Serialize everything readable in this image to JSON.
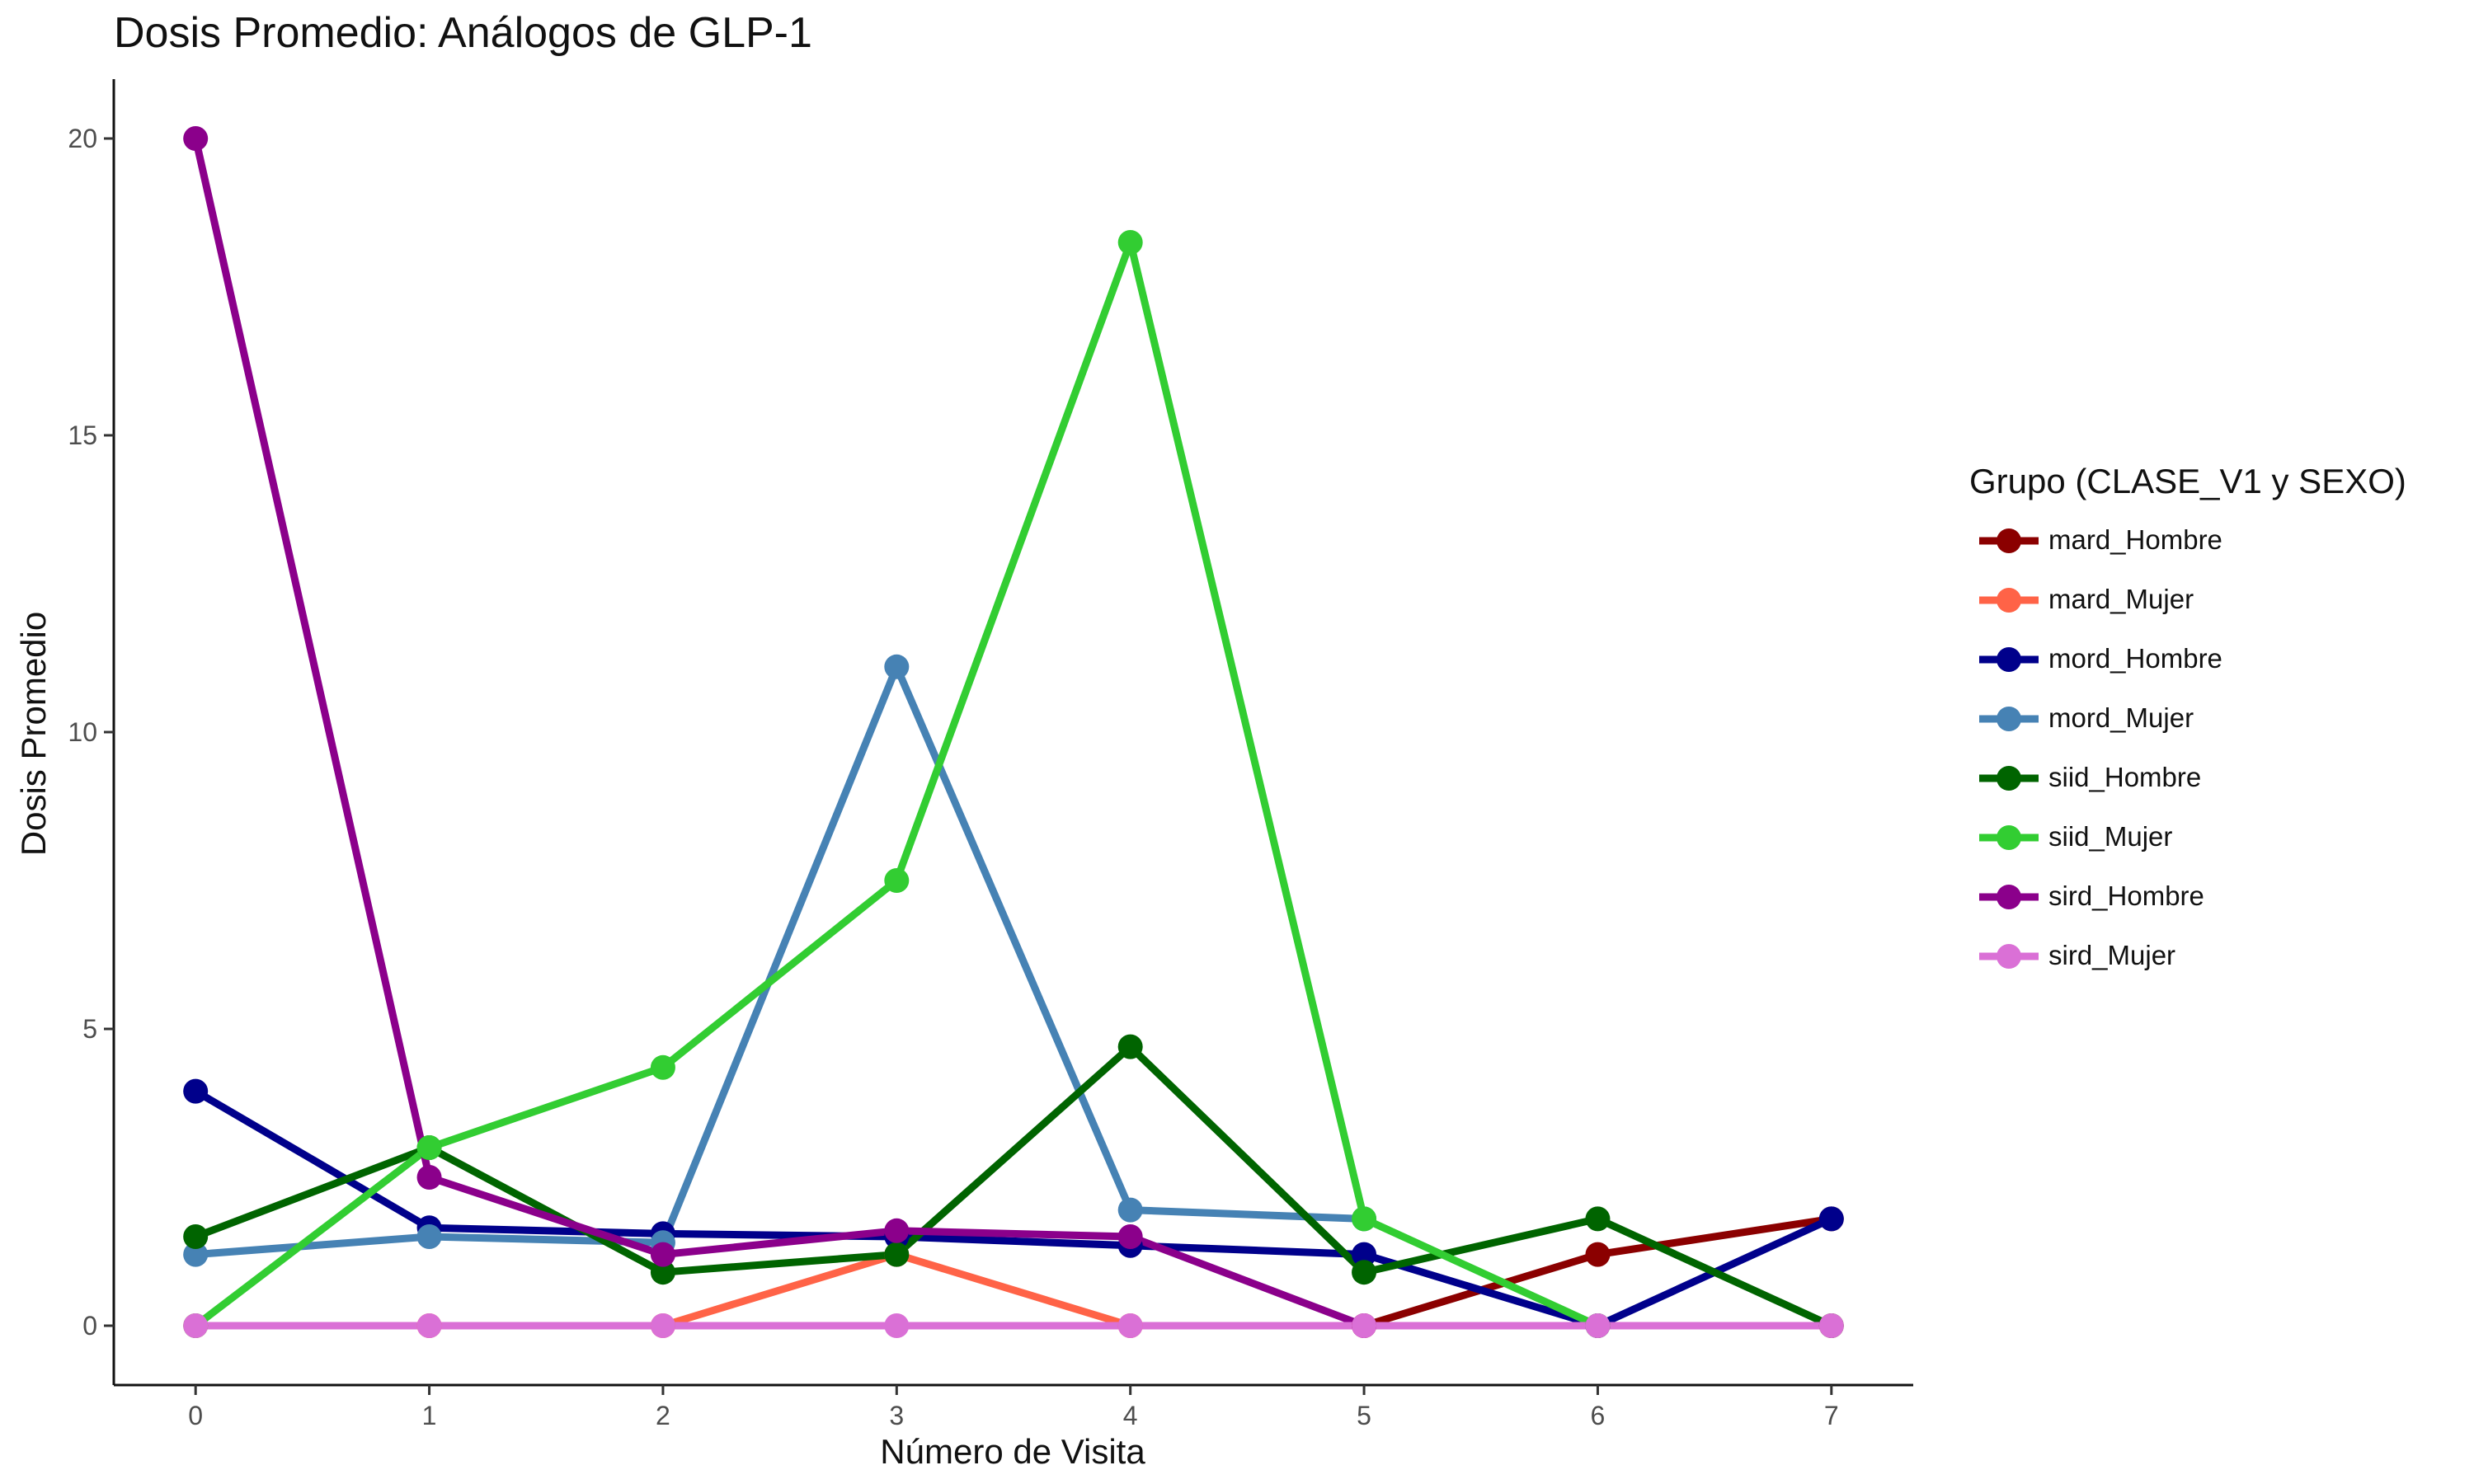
{
  "chart_data": {
    "type": "line",
    "title": "Dosis Promedio: Análogos de GLP-1",
    "xlabel": "Número de Visita",
    "ylabel": "Dosis Promedio",
    "x": [
      0,
      1,
      2,
      3,
      4,
      5,
      6,
      7
    ],
    "xticks": [
      "0",
      "1",
      "2",
      "3",
      "4",
      "5",
      "6",
      "7"
    ],
    "yticks": [
      "0",
      "5",
      "10",
      "15",
      "20"
    ],
    "xlim": [
      -0.35,
      7.35
    ],
    "ylim": [
      -1,
      21
    ],
    "grid": false,
    "legend_title": "Grupo (CLASE_V1 y SEXO)",
    "legend_position": "right",
    "series": [
      {
        "name": "mard_Hombre",
        "color": "#8B0000",
        "values": [
          null,
          null,
          null,
          null,
          null,
          0,
          1.2,
          1.8
        ]
      },
      {
        "name": "mard_Mujer",
        "color": "#FF6347",
        "values": [
          0,
          0,
          0,
          1.2,
          0,
          0,
          0,
          0
        ]
      },
      {
        "name": "mord_Hombre",
        "color": "#00008B",
        "values": [
          3.95,
          1.65,
          1.55,
          1.5,
          1.35,
          1.2,
          0,
          1.8
        ]
      },
      {
        "name": "mord_Mujer",
        "color": "#4682B4",
        "values": [
          1.2,
          1.5,
          1.4,
          11.1,
          1.95,
          1.8,
          null,
          null
        ]
      },
      {
        "name": "siid_Hombre",
        "color": "#006400",
        "values": [
          1.5,
          3.0,
          0.9,
          1.2,
          4.7,
          0.9,
          1.8,
          0
        ]
      },
      {
        "name": "siid_Mujer",
        "color": "#32CD32",
        "values": [
          0,
          3.0,
          4.35,
          7.5,
          18.25,
          1.8,
          0,
          null
        ]
      },
      {
        "name": "sird_Hombre",
        "color": "#8B008B",
        "values": [
          20,
          2.5,
          1.2,
          1.6,
          1.5,
          0,
          null,
          null
        ]
      },
      {
        "name": "sird_Mujer",
        "color": "#DA70D6",
        "values": [
          0,
          0,
          0,
          0,
          0,
          0,
          0,
          0
        ]
      }
    ]
  }
}
